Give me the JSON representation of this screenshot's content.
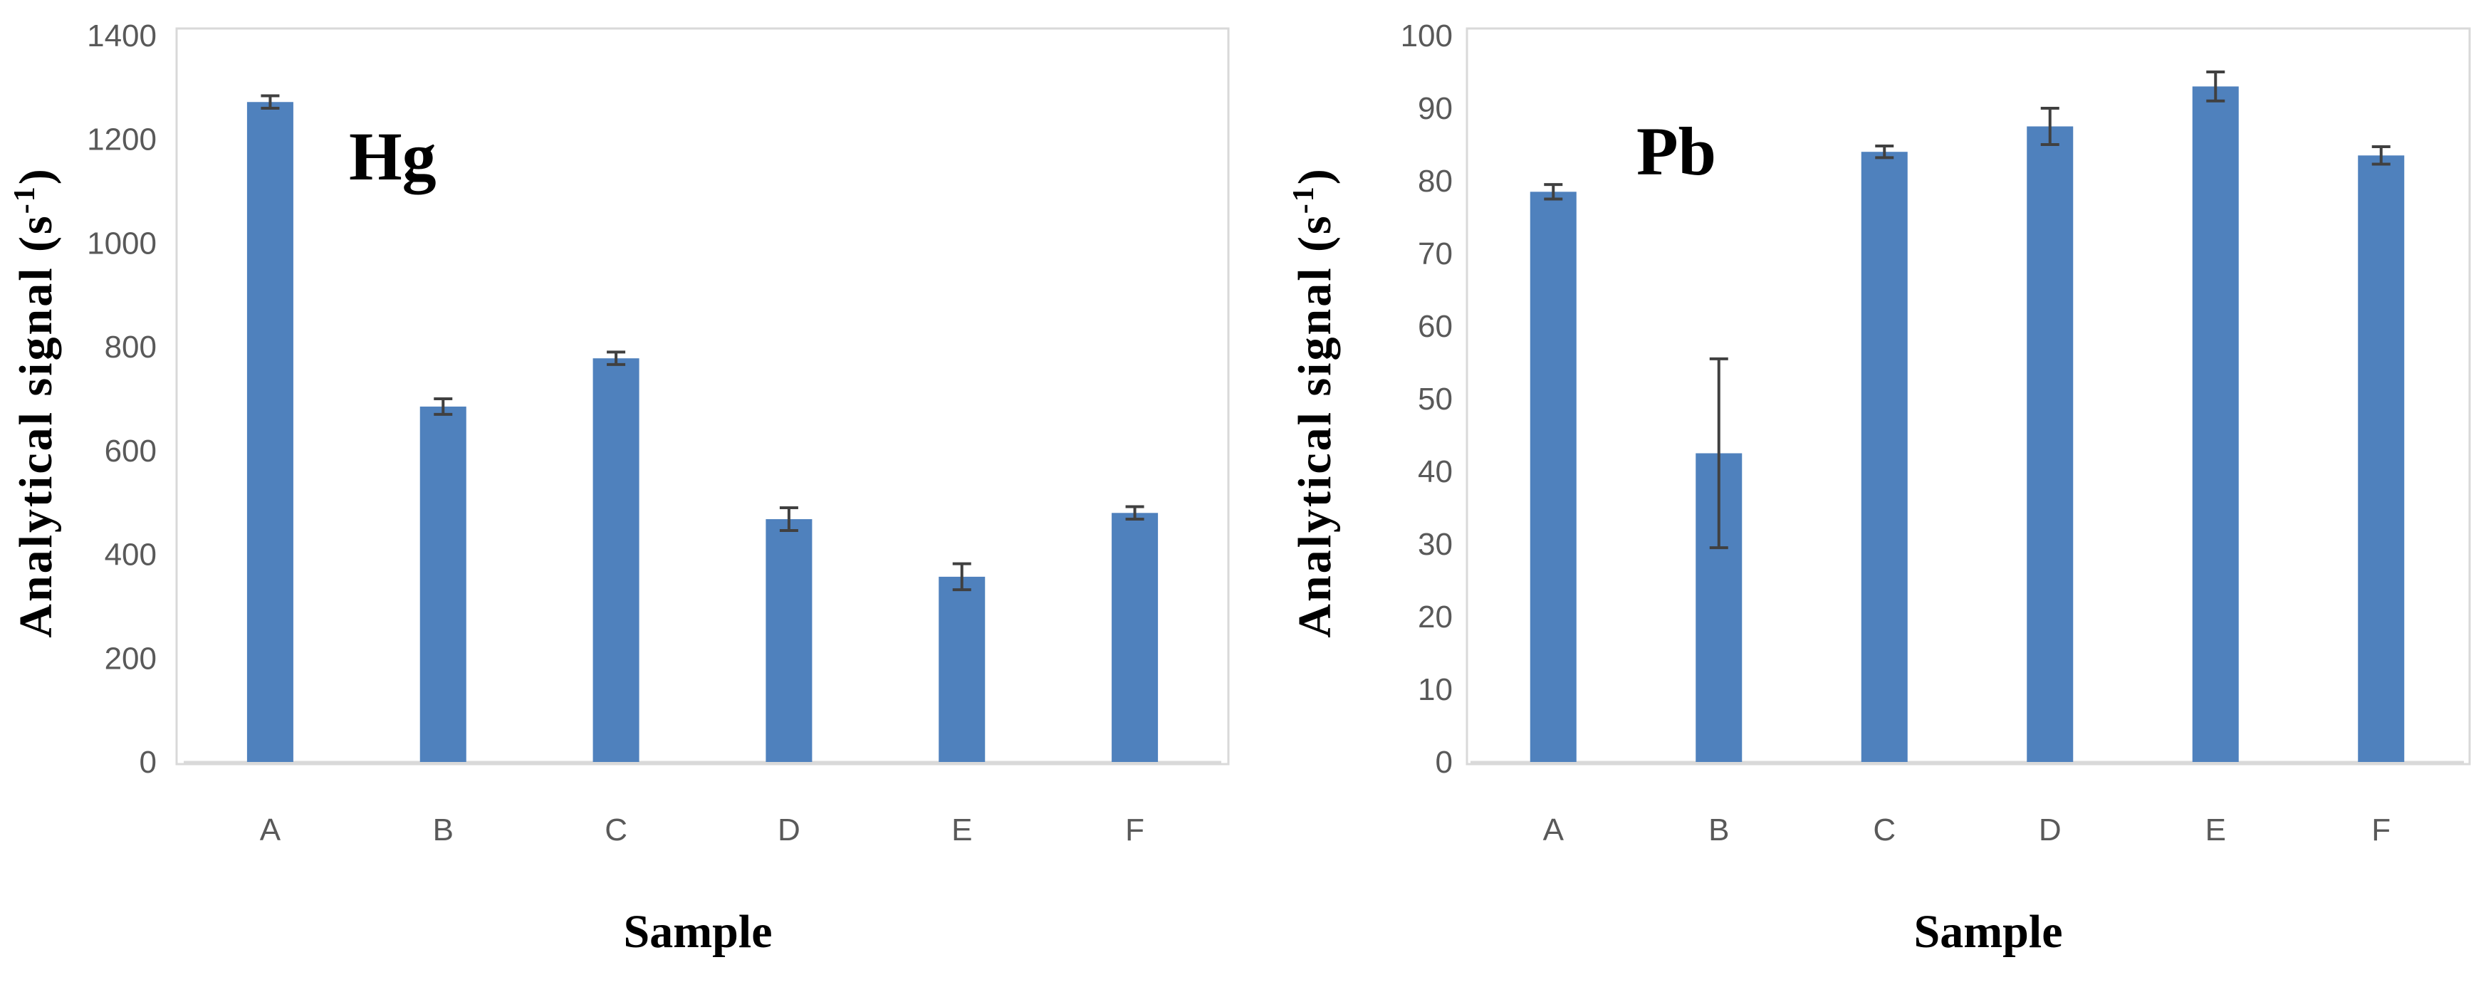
{
  "chart_data": [
    {
      "type": "bar",
      "element_label": "Hg",
      "categories": [
        "A",
        "B",
        "C",
        "D",
        "E",
        "F"
      ],
      "values": [
        1272,
        685,
        778,
        468,
        357,
        480
      ],
      "error": [
        12,
        15,
        12,
        22,
        25,
        12
      ],
      "xlabel": "Sample",
      "ylabel": "Analytical signal (s",
      "ylabel_sup": "-1",
      "ylabel_close": ")",
      "ylim": [
        0,
        1400
      ],
      "yticks": [
        0,
        200,
        400,
        600,
        800,
        1000,
        1200,
        1400
      ],
      "bar_color": "#4F81BD",
      "error_color": "#404040",
      "grid": false
    },
    {
      "type": "bar",
      "element_label": "Pb",
      "categories": [
        "A",
        "B",
        "C",
        "D",
        "E",
        "F"
      ],
      "values": [
        78.5,
        42.5,
        84,
        87.5,
        93,
        83.5
      ],
      "error": [
        1,
        13,
        0.8,
        2.5,
        2,
        1.2
      ],
      "xlabel": "Sample",
      "ylabel": "Analytical signal (s",
      "ylabel_sup": "-1",
      "ylabel_close": ")",
      "ylim": [
        0,
        100
      ],
      "yticks": [
        0,
        10,
        20,
        30,
        40,
        50,
        60,
        70,
        80,
        90,
        100
      ],
      "bar_color": "#4F81BD",
      "error_color": "#404040",
      "grid": false
    }
  ]
}
